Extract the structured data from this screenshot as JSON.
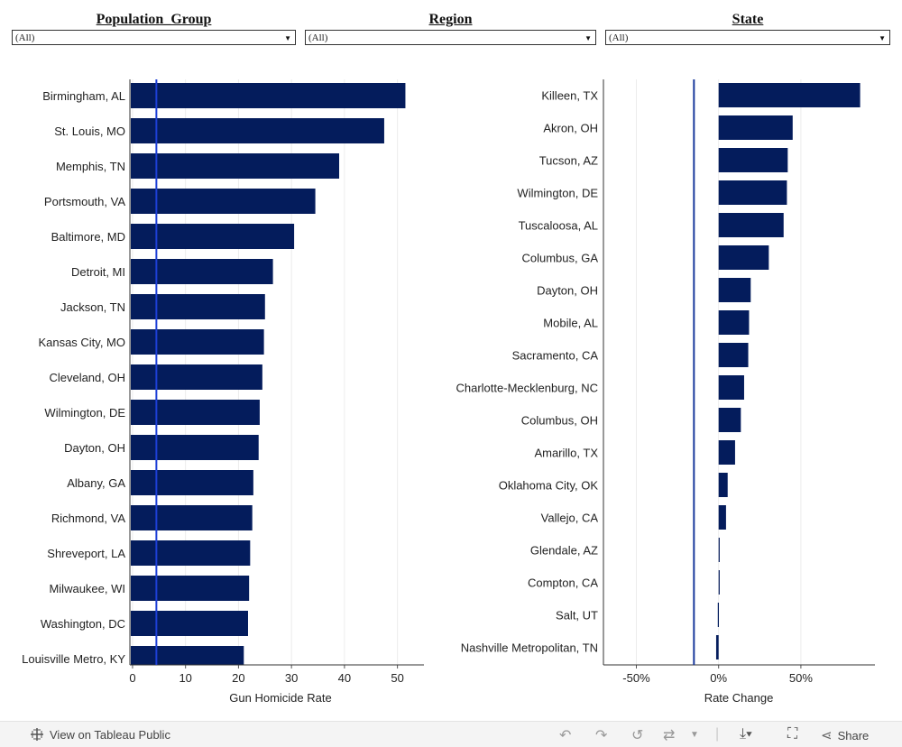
{
  "filters": [
    {
      "title": "Population_Group",
      "value": "(All)"
    },
    {
      "title": "Region",
      "value": "(All)"
    },
    {
      "title": "State",
      "value": "(All)"
    }
  ],
  "chart_data": [
    {
      "type": "bar",
      "orientation": "horizontal",
      "categories": [
        "Birmingham, AL",
        "St. Louis, MO",
        "Memphis, TN",
        "Portsmouth, VA",
        "Baltimore, MD",
        "Detroit, MI",
        "Jackson, TN",
        "Kansas City, MO",
        "Cleveland, OH",
        "Wilmington, DE",
        "Dayton, OH",
        "Albany, GA",
        "Richmond, VA",
        "Shreveport, LA",
        "Milwaukee, WI",
        "Washington, DC",
        "Louisville Metro, KY"
      ],
      "values": [
        51.5,
        47.5,
        39.0,
        34.5,
        30.5,
        26.5,
        25.0,
        24.8,
        24.5,
        24.0,
        23.8,
        22.8,
        22.6,
        22.2,
        22.0,
        21.8,
        21.0
      ],
      "reference_line": 4.5,
      "xlabel": "Gun Homicide Rate",
      "xlim": [
        -0.5,
        55
      ],
      "xticks": [
        0,
        10,
        20,
        30,
        40,
        50
      ],
      "xtick_labels": [
        "0",
        "10",
        "20",
        "30",
        "40",
        "50"
      ],
      "bar_color": "#041c5c",
      "ref_color": "#1d3fd6"
    },
    {
      "type": "bar",
      "orientation": "horizontal",
      "categories": [
        "Killeen, TX",
        "Akron, OH",
        "Tucson, AZ",
        "Wilmington, DE",
        "Tuscaloosa, AL",
        "Columbus, GA",
        "Dayton, OH",
        "Mobile, AL",
        "Sacramento, CA",
        "Charlotte-Mecklenburg, NC",
        "Columbus, OH",
        "Amarillo, TX",
        "Oklahoma City, OK",
        "Vallejo, CA",
        "Glendale, AZ",
        "Compton, CA",
        "Salt, UT",
        "Nashville Metropolitan, TN"
      ],
      "values": [
        86,
        45,
        42,
        41.5,
        39.5,
        30.5,
        19.5,
        18.5,
        18,
        15.5,
        13.5,
        10,
        5.5,
        4.5,
        0.5,
        0.3,
        -0.5,
        -1.5
      ],
      "reference_line": -15,
      "xlabel": "Rate Change",
      "xlim": [
        -70,
        95
      ],
      "xticks": [
        -50,
        0,
        50
      ],
      "xtick_labels": [
        "-50%",
        "0%",
        "50%"
      ],
      "bar_color": "#041c5c",
      "ref_color": "#1a3a9c"
    }
  ],
  "footer": {
    "view_label": "View on Tableau Public",
    "share_label": "Share"
  }
}
